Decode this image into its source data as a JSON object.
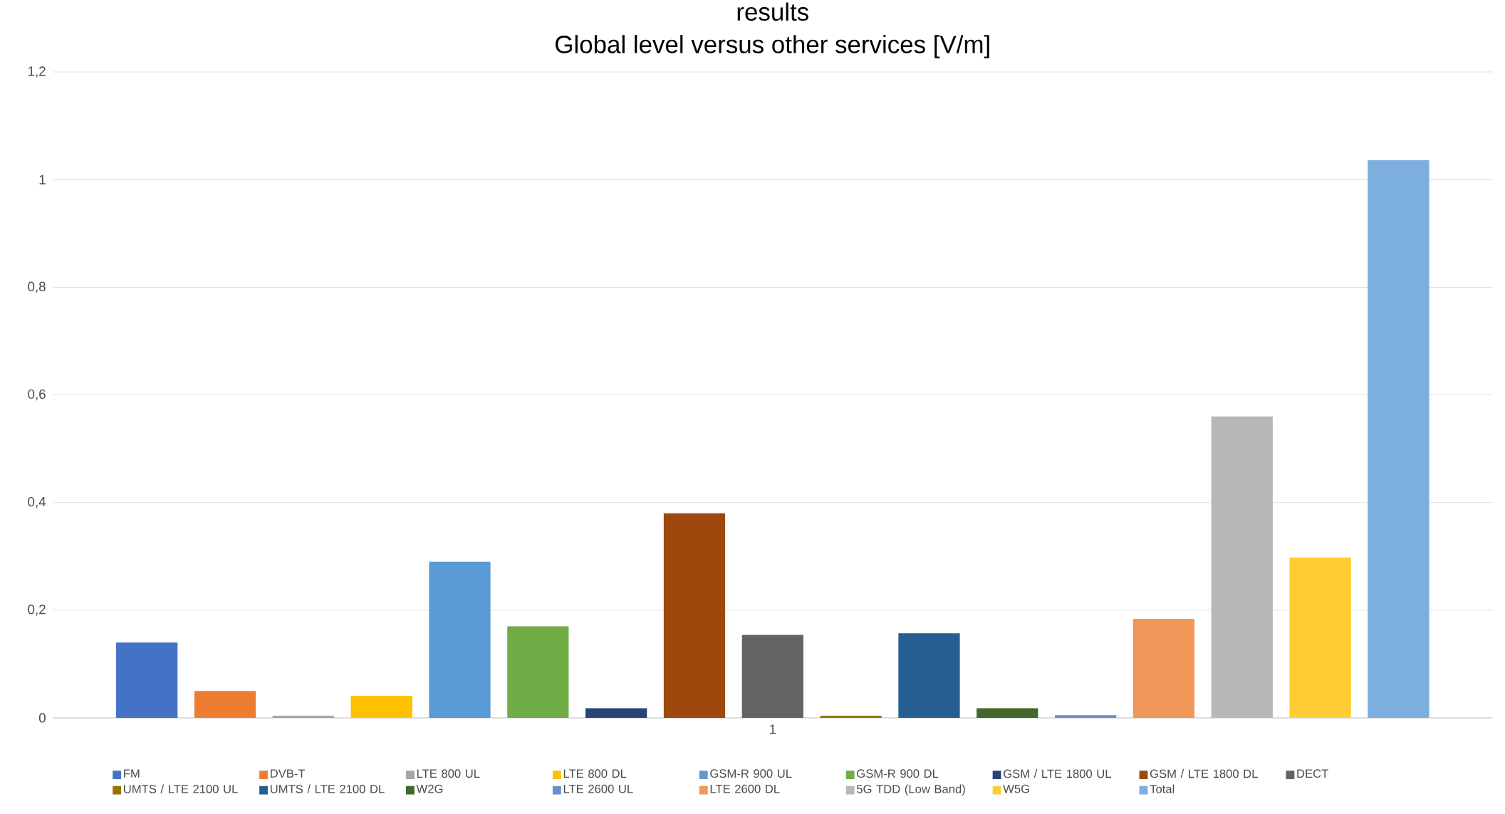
{
  "chart_data": {
    "type": "bar",
    "title": "results",
    "subtitle": "Global level versus other services [V/m]",
    "categories": [
      "1"
    ],
    "ylim": [
      0,
      1.2
    ],
    "yticks": [
      0,
      {
        "value": 0.2,
        "label": "0,2"
      },
      {
        "value": 0.4,
        "label": "0,4"
      },
      {
        "value": 0.6,
        "label": "0,6"
      },
      {
        "value": 0.8,
        "label": "0,8"
      },
      1,
      {
        "value": 1.2,
        "label": "1,2"
      }
    ],
    "grid": "y",
    "legend": "bottom",
    "series": [
      {
        "name": "FM",
        "color": "#4472c4",
        "values": [
          0.14
        ]
      },
      {
        "name": "DVB-T",
        "color": "#ed7d31",
        "values": [
          0.05
        ]
      },
      {
        "name": "LTE 800 UL",
        "color": "#a5a5a5",
        "values": [
          0.004
        ]
      },
      {
        "name": "LTE 800 DL",
        "color": "#ffc000",
        "values": [
          0.041
        ]
      },
      {
        "name": "GSM-R 900 UL",
        "color": "#5b9bd5",
        "values": [
          0.29
        ]
      },
      {
        "name": "GSM-R 900 DL",
        "color": "#70ad47",
        "values": [
          0.17
        ]
      },
      {
        "name": "GSM / LTE 1800 UL",
        "color": "#264478",
        "values": [
          0.018
        ]
      },
      {
        "name": "GSM / LTE 1800 DL",
        "color": "#9e480e",
        "values": [
          0.38
        ]
      },
      {
        "name": "DECT",
        "color": "#636363",
        "values": [
          0.154
        ]
      },
      {
        "name": "UMTS / LTE 2100 UL",
        "color": "#997300",
        "values": [
          0.004
        ]
      },
      {
        "name": "UMTS / LTE 2100 DL",
        "color": "#255e91",
        "values": [
          0.157
        ]
      },
      {
        "name": "W2G",
        "color": "#43682b",
        "values": [
          0.018
        ]
      },
      {
        "name": "LTE 2600 UL",
        "color": "#698ed0",
        "values": [
          0.005
        ]
      },
      {
        "name": "LTE 2600 DL",
        "color": "#f1975a",
        "values": [
          0.184
        ]
      },
      {
        "name": "5G TDD (Low Band)",
        "color": "#b7b7b7",
        "values": [
          0.56
        ]
      },
      {
        "name": "W5G",
        "color": "#ffcd33",
        "values": [
          0.298
        ]
      },
      {
        "name": "Total",
        "color": "#7cafdd",
        "values": [
          1.036
        ]
      }
    ]
  }
}
